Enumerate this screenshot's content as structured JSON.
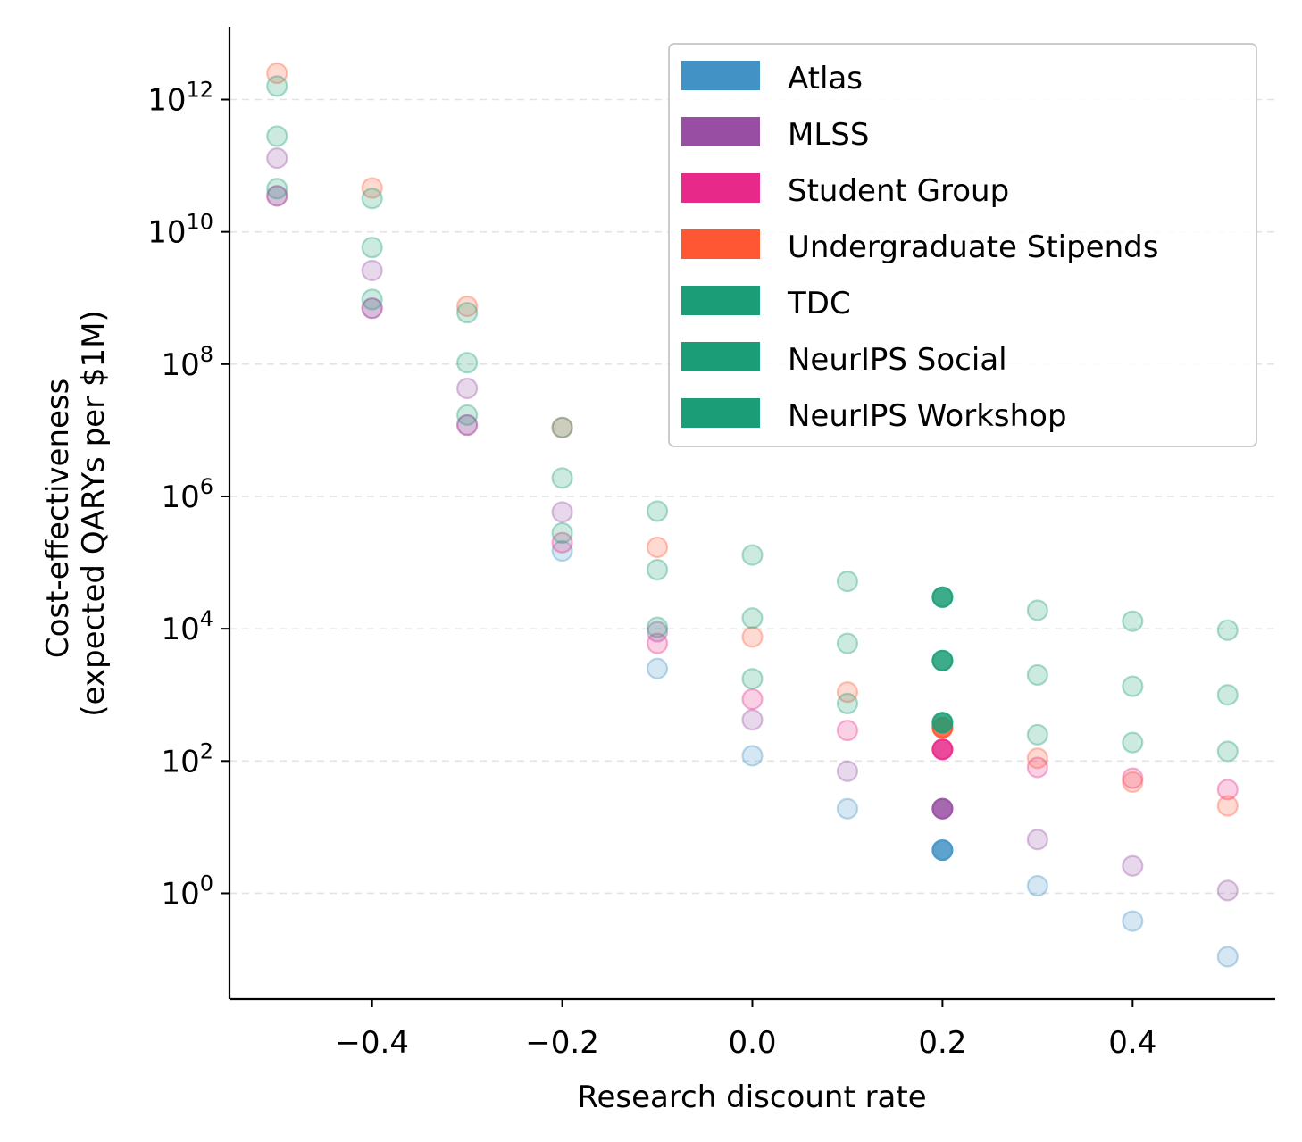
{
  "chart_data": {
    "type": "scatter",
    "xlabel": "Research discount rate",
    "ylabel_lines": [
      "Cost-effectiveness",
      "(expected QARYs per $1M)"
    ],
    "xlim": [
      -0.55,
      0.55
    ],
    "ylim_log10": [
      -1.6,
      13.1
    ],
    "y_scale": "log",
    "x_ticks": [
      {
        "value": -0.4,
        "label": "−0.4"
      },
      {
        "value": -0.2,
        "label": "−0.2"
      },
      {
        "value": 0.0,
        "label": "0.0"
      },
      {
        "value": 0.2,
        "label": "0.2"
      },
      {
        "value": 0.4,
        "label": "0.4"
      }
    ],
    "y_ticks": [
      {
        "exp": 0,
        "base": "10",
        "power": "0"
      },
      {
        "exp": 2,
        "base": "10",
        "power": "2"
      },
      {
        "exp": 4,
        "base": "10",
        "power": "4"
      },
      {
        "exp": 6,
        "base": "10",
        "power": "6"
      },
      {
        "exp": 8,
        "base": "10",
        "power": "8"
      },
      {
        "exp": 10,
        "base": "10",
        "power": "10"
      },
      {
        "exp": 12,
        "base": "10",
        "power": "12"
      }
    ],
    "grid": "horizontal dashed",
    "legend_position": "top-right",
    "highlight_x": 0.2,
    "x": [
      -0.5,
      -0.4,
      -0.3,
      -0.2,
      -0.1,
      0.0,
      0.1,
      0.2,
      0.3,
      0.4,
      0.5
    ],
    "series": [
      {
        "name": "Atlas",
        "color": "#4292c6",
        "values": [
          35000000000.0,
          700000000.0,
          12000000.0,
          150000.0,
          2500.0,
          120,
          19,
          4.5,
          1.3,
          0.38,
          0.11
        ]
      },
      {
        "name": "MLSS",
        "color": "#984ea3",
        "values": [
          130000000000.0,
          2600000000.0,
          43000000.0,
          580000.0,
          9000.0,
          420,
          70,
          19,
          6.5,
          2.6,
          1.1
        ]
      },
      {
        "name": "Student Group",
        "color": "#e7298a",
        "values": [
          35000000000.0,
          700000000.0,
          12000000.0,
          200000.0,
          6000.0,
          860,
          290,
          150,
          80,
          55,
          37
        ]
      },
      {
        "name": "Undergraduate Stipends",
        "color": "#ff5733",
        "values": [
          2500000000000.0,
          46000000000.0,
          750000000.0,
          11000000.0,
          170000.0,
          7500.0,
          1100.0,
          320,
          110,
          48,
          21
        ]
      },
      {
        "name": "TDC",
        "color": "#1b9e77",
        "values": [
          1600000000000.0,
          32000000000.0,
          600000000.0,
          11000000.0,
          600000.0,
          130000.0,
          52000.0,
          30000.0,
          19000.0,
          13000.0,
          9500.0
        ]
      },
      {
        "name": "NeurIPS Social",
        "color": "#1b9e77",
        "values": [
          280000000000.0,
          5800000000.0,
          105000000.0,
          1900000.0,
          78000.0,
          14500.0,
          6000.0,
          3300.0,
          2000.0,
          1350.0,
          1000.0
        ]
      },
      {
        "name": "NeurIPS Workshop",
        "color": "#1b9e77",
        "values": [
          45000000000.0,
          950000000.0,
          17000000.0,
          280000.0,
          10500.0,
          1750.0,
          740,
          380,
          250,
          190,
          140
        ]
      }
    ]
  }
}
